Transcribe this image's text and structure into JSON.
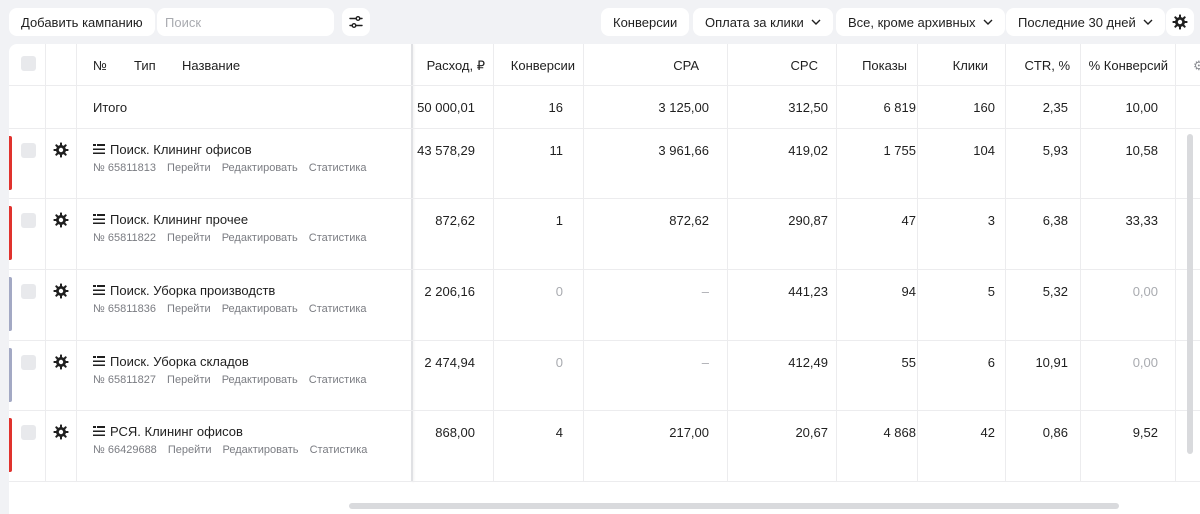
{
  "toolbar": {
    "add_campaign": "Добавить кампанию",
    "search_placeholder": "Поиск",
    "conversions": "Конверсии",
    "payment": "Оплата за клики",
    "filter": "Все, кроме архивных",
    "period": "Последние 30 дней"
  },
  "header": {
    "no": "№",
    "type": "Тип",
    "name": "Название",
    "spend": "Расход, ₽",
    "conversions": "Конверсии",
    "cpa": "CPA",
    "cpc": "CPC",
    "impressions": "Показы",
    "clicks": "Клики",
    "ctr": "CTR, %",
    "conv_pct": "% Конверсий"
  },
  "total": {
    "label": "Итого",
    "spend": "50 000,01",
    "conversions": "16",
    "cpa": "3 125,00",
    "cpc": "312,50",
    "impressions": "6 819",
    "clicks": "160",
    "ctr": "2,35",
    "conv_pct": "10,00"
  },
  "link_labels": {
    "go": "Перейти",
    "edit": "Редактировать",
    "stats": "Статистика"
  },
  "colors": {
    "red": "#e0322d",
    "gray": "#a3a9c4"
  },
  "rows": [
    {
      "name": "Поиск. Клининг офисов",
      "id": "№ 65811813",
      "spend": "43 578,29",
      "conversions": "11",
      "cpa": "3 961,66",
      "cpc": "419,02",
      "impressions": "1 755",
      "clicks": "104",
      "ctr": "5,93",
      "conv_pct": "10,58",
      "marker": "red"
    },
    {
      "name": "Поиск. Клининг прочее",
      "id": "№ 65811822",
      "spend": "872,62",
      "conversions": "1",
      "cpa": "872,62",
      "cpc": "290,87",
      "impressions": "47",
      "clicks": "3",
      "ctr": "6,38",
      "conv_pct": "33,33",
      "marker": "red"
    },
    {
      "name": "Поиск. Уборка производств",
      "id": "№ 65811836",
      "spend": "2 206,16",
      "conversions": "0",
      "cpa": "–",
      "cpc": "441,23",
      "impressions": "94",
      "clicks": "5",
      "ctr": "5,32",
      "conv_pct": "0,00",
      "marker": "gray"
    },
    {
      "name": "Поиск. Уборка складов",
      "id": "№ 65811827",
      "spend": "2 474,94",
      "conversions": "0",
      "cpa": "–",
      "cpc": "412,49",
      "impressions": "55",
      "clicks": "6",
      "ctr": "10,91",
      "conv_pct": "0,00",
      "marker": "gray"
    },
    {
      "name": "РСЯ. Клининг офисов",
      "id": "№ 66429688",
      "spend": "868,00",
      "conversions": "4",
      "cpa": "217,00",
      "cpc": "20,67",
      "impressions": "4 868",
      "clicks": "42",
      "ctr": "0,86",
      "conv_pct": "9,52",
      "marker": "red"
    }
  ]
}
